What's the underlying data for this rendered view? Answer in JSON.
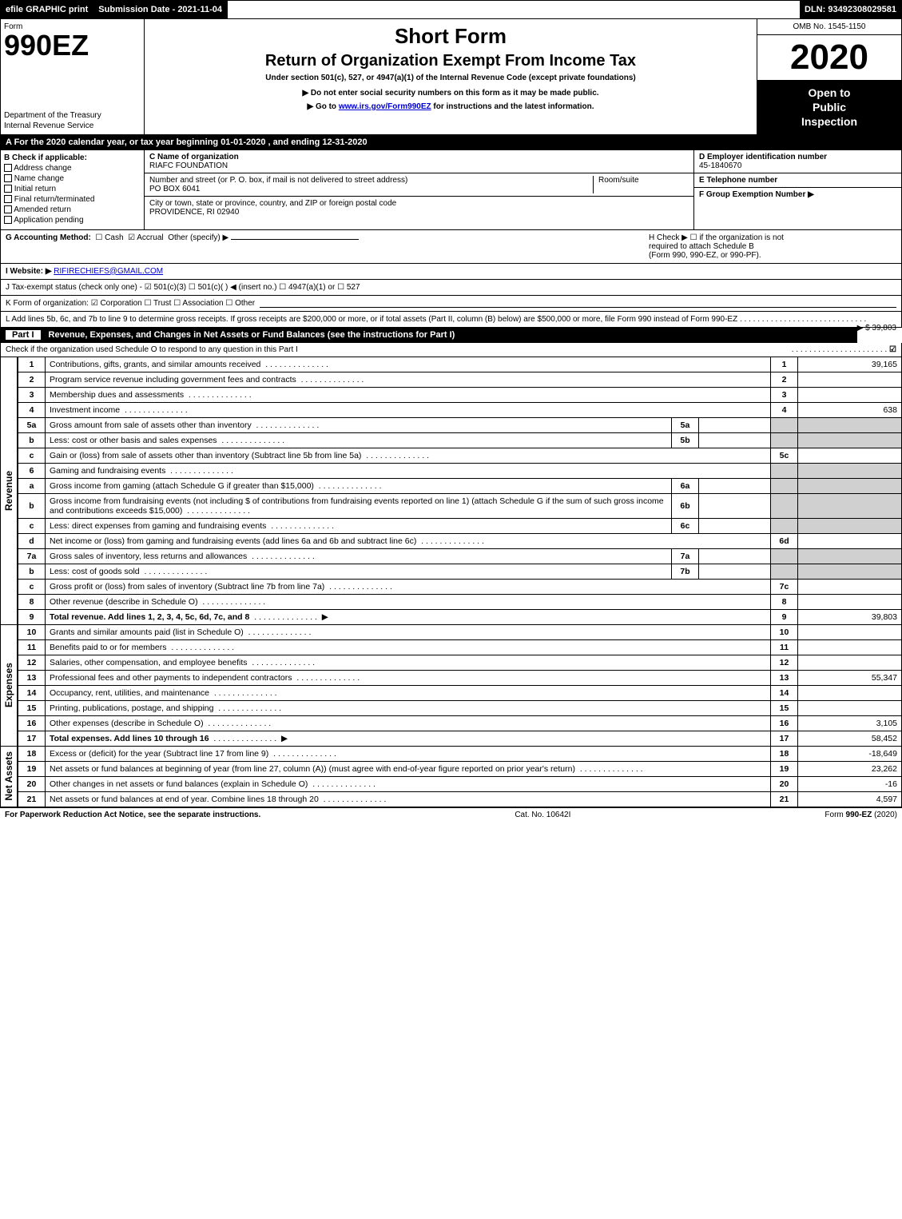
{
  "top_bar": {
    "efile": "efile GRAPHIC print",
    "submission_label": "Submission Date - 2021-11-04",
    "dln": "DLN: 93492308029581"
  },
  "header": {
    "form_label": "Form",
    "form_number": "990EZ",
    "dept_line1": "Department of the Treasury",
    "dept_line2": "Internal Revenue Service",
    "short_form": "Short Form",
    "title": "Return of Organization Exempt From Income Tax",
    "subtitle": "Under section 501(c), 527, or 4947(a)(1) of the Internal Revenue Code (except private foundations)",
    "notice": "▶ Do not enter social security numbers on this form as it may be made public.",
    "goto_prefix": "▶ Go to ",
    "goto_link": "www.irs.gov/Form990EZ",
    "goto_suffix": " for instructions and the latest information.",
    "omb": "OMB No. 1545-1150",
    "year": "2020",
    "open_l1": "Open to",
    "open_l2": "Public",
    "open_l3": "Inspection"
  },
  "period": "A For the 2020 calendar year, or tax year beginning 01-01-2020 , and ending 12-31-2020",
  "section_b": {
    "heading": "B  Check if applicable:",
    "options": [
      "Address change",
      "Name change",
      "Initial return",
      "Final return/terminated",
      "Amended return",
      "Application pending"
    ]
  },
  "section_c": {
    "lbl": "C Name of organization",
    "name": "RIAFC FOUNDATION",
    "addr_lbl": "Number and street (or P. O. box, if mail is not delivered to street address)",
    "addr": "PO BOX 6041",
    "room_lbl": "Room/suite",
    "city_lbl": "City or town, state or province, country, and ZIP or foreign postal code",
    "city": "PROVIDENCE, RI  02940"
  },
  "section_d": {
    "lbl": "D Employer identification number",
    "val": "45-1840670"
  },
  "section_e": {
    "lbl": "E Telephone number",
    "val": ""
  },
  "section_f": {
    "lbl": "F Group Exemption Number  ▶",
    "val": ""
  },
  "section_g": {
    "lbl": "G Accounting Method:",
    "cash": "Cash",
    "accrual": "Accrual",
    "other": "Other (specify) ▶"
  },
  "section_h": {
    "l1": "H  Check ▶  ☐  if the organization is not",
    "l2": "required to attach Schedule B",
    "l3": "(Form 990, 990-EZ, or 990-PF)."
  },
  "section_i": {
    "lbl": "I Website: ▶",
    "val": "RIFIRECHIEFS@GMAIL.COM"
  },
  "section_j": {
    "text": "J Tax-exempt status (check only one) - ☑ 501(c)(3) ☐ 501(c)(  ) ◀ (insert no.) ☐ 4947(a)(1) or ☐ 527"
  },
  "section_k": {
    "text": "K Form of organization:  ☑ Corporation  ☐ Trust  ☐ Association  ☐ Other"
  },
  "section_l": {
    "text": "L Add lines 5b, 6c, and 7b to line 9 to determine gross receipts. If gross receipts are $200,000 or more, or if total assets (Part II, column (B) below) are $500,000 or more, file Form 990 instead of Form 990-EZ",
    "amount_pfx": "▶ $ ",
    "amount": "39,803"
  },
  "part1": {
    "label": "Part I",
    "title": "Revenue, Expenses, and Changes in Net Assets or Fund Balances (see the instructions for Part I)",
    "sub": "Check if the organization used Schedule O to respond to any question in this Part I",
    "checked_glyph": "☑"
  },
  "sections": {
    "revenue": "Revenue",
    "expenses": "Expenses",
    "netassets": "Net Assets"
  },
  "lines": [
    {
      "n": "1",
      "d": "Contributions, gifts, grants, and similar amounts received",
      "rn": "1",
      "v": "39,165"
    },
    {
      "n": "2",
      "d": "Program service revenue including government fees and contracts",
      "rn": "2",
      "v": ""
    },
    {
      "n": "3",
      "d": "Membership dues and assessments",
      "rn": "3",
      "v": ""
    },
    {
      "n": "4",
      "d": "Investment income",
      "rn": "4",
      "v": "638"
    },
    {
      "n": "5a",
      "d": "Gross amount from sale of assets other than inventory",
      "il": "5a",
      "iv": "",
      "shade": true
    },
    {
      "n": "b",
      "d": "Less: cost or other basis and sales expenses",
      "il": "5b",
      "iv": "",
      "shade": true
    },
    {
      "n": "c",
      "d": "Gain or (loss) from sale of assets other than inventory (Subtract line 5b from line 5a)",
      "rn": "5c",
      "v": ""
    },
    {
      "n": "6",
      "d": "Gaming and fundraising events",
      "shade": true,
      "noRn": true
    },
    {
      "n": "a",
      "d": "Gross income from gaming (attach Schedule G if greater than $15,000)",
      "il": "6a",
      "iv": "",
      "shade": true
    },
    {
      "n": "b",
      "d": "Gross income from fundraising events (not including $                of contributions from fundraising events reported on line 1) (attach Schedule G if the sum of such gross income and contributions exceeds $15,000)",
      "il": "6b",
      "iv": "",
      "shade": true
    },
    {
      "n": "c",
      "d": "Less: direct expenses from gaming and fundraising events",
      "il": "6c",
      "iv": "",
      "shade": true
    },
    {
      "n": "d",
      "d": "Net income or (loss) from gaming and fundraising events (add lines 6a and 6b and subtract line 6c)",
      "rn": "6d",
      "v": ""
    },
    {
      "n": "7a",
      "d": "Gross sales of inventory, less returns and allowances",
      "il": "7a",
      "iv": "",
      "shade": true
    },
    {
      "n": "b",
      "d": "Less: cost of goods sold",
      "il": "7b",
      "iv": "",
      "shade": true
    },
    {
      "n": "c",
      "d": "Gross profit or (loss) from sales of inventory (Subtract line 7b from line 7a)",
      "rn": "7c",
      "v": ""
    },
    {
      "n": "8",
      "d": "Other revenue (describe in Schedule O)",
      "rn": "8",
      "v": ""
    },
    {
      "n": "9",
      "d": "Total revenue. Add lines 1, 2, 3, 4, 5c, 6d, 7c, and 8",
      "rn": "9",
      "v": "39,803",
      "bold": true,
      "arrow": true
    }
  ],
  "exp_lines": [
    {
      "n": "10",
      "d": "Grants and similar amounts paid (list in Schedule O)",
      "rn": "10",
      "v": ""
    },
    {
      "n": "11",
      "d": "Benefits paid to or for members",
      "rn": "11",
      "v": ""
    },
    {
      "n": "12",
      "d": "Salaries, other compensation, and employee benefits",
      "rn": "12",
      "v": ""
    },
    {
      "n": "13",
      "d": "Professional fees and other payments to independent contractors",
      "rn": "13",
      "v": "55,347"
    },
    {
      "n": "14",
      "d": "Occupancy, rent, utilities, and maintenance",
      "rn": "14",
      "v": ""
    },
    {
      "n": "15",
      "d": "Printing, publications, postage, and shipping",
      "rn": "15",
      "v": ""
    },
    {
      "n": "16",
      "d": "Other expenses (describe in Schedule O)",
      "rn": "16",
      "v": "3,105"
    },
    {
      "n": "17",
      "d": "Total expenses. Add lines 10 through 16",
      "rn": "17",
      "v": "58,452",
      "bold": true,
      "arrow": true
    }
  ],
  "na_lines": [
    {
      "n": "18",
      "d": "Excess or (deficit) for the year (Subtract line 17 from line 9)",
      "rn": "18",
      "v": "-18,649"
    },
    {
      "n": "19",
      "d": "Net assets or fund balances at beginning of year (from line 27, column (A)) (must agree with end-of-year figure reported on prior year's return)",
      "rn": "19",
      "v": "23,262"
    },
    {
      "n": "20",
      "d": "Other changes in net assets or fund balances (explain in Schedule O)",
      "rn": "20",
      "v": "-16"
    },
    {
      "n": "21",
      "d": "Net assets or fund balances at end of year. Combine lines 18 through 20",
      "rn": "21",
      "v": "4,597"
    }
  ],
  "footer": {
    "left": "For Paperwork Reduction Act Notice, see the separate instructions.",
    "mid": "Cat. No. 10642I",
    "right_pfx": "Form ",
    "right_bold": "990-EZ",
    "right_sfx": " (2020)"
  },
  "colors": {
    "black": "#000000",
    "white": "#ffffff",
    "shade": "#d0d0d0",
    "link": "#0000cc"
  }
}
